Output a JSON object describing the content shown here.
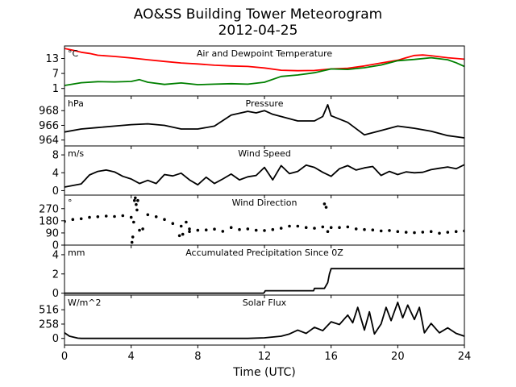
{
  "figure": {
    "title": "AO&SS Building Tower Meteorogram",
    "subtitle": "2012-04-25",
    "xlabel": "Time (UTC)"
  },
  "chart_data": [
    {
      "type": "line",
      "title": "Air and Dewpoint Temperature",
      "unit": "°C",
      "xlim": [
        0,
        24
      ],
      "ylim": [
        -2,
        18
      ],
      "yticks": [
        1,
        7,
        13
      ],
      "series": [
        {
          "color": "#ff0000",
          "x": [
            0,
            0.5,
            1,
            1.5,
            2,
            3,
            4,
            5,
            6,
            7,
            8,
            9,
            10,
            11,
            12,
            13,
            14,
            15,
            16,
            17,
            18,
            19,
            20,
            20.5,
            21,
            21.5,
            22,
            23,
            24
          ],
          "y": [
            17,
            16.3,
            15.5,
            15,
            14.3,
            13.8,
            13.2,
            12.5,
            11.8,
            11.2,
            10.8,
            10.3,
            10,
            9.8,
            9.2,
            8.3,
            8.1,
            8.2,
            8.8,
            9.1,
            10,
            11.2,
            12.3,
            13.3,
            14.2,
            14.4,
            14.1,
            13.3,
            12.7
          ]
        },
        {
          "color": "#008000",
          "x": [
            0,
            1,
            2,
            3,
            4,
            4.5,
            5,
            6,
            7,
            8,
            9,
            10,
            11,
            12,
            13,
            14,
            15,
            16,
            17,
            18,
            19,
            20,
            21,
            22,
            23,
            23.5,
            24
          ],
          "y": [
            2.2,
            3.3,
            3.7,
            3.6,
            3.8,
            4.5,
            3.5,
            2.6,
            3.2,
            2.5,
            2.7,
            2.9,
            2.7,
            3.5,
            5.8,
            6.4,
            7.3,
            8.8,
            8.6,
            9.3,
            10.4,
            12.1,
            12.6,
            13.3,
            12.5,
            11.3,
            9.8
          ]
        }
      ]
    },
    {
      "type": "line",
      "title": "Pressure",
      "unit": "hPa",
      "xlim": [
        0,
        24
      ],
      "ylim": [
        963.2,
        970
      ],
      "yticks": [
        964,
        966,
        968
      ],
      "series": [
        {
          "color": "#000000",
          "x": [
            0,
            1,
            2,
            3,
            4,
            5,
            6,
            7,
            8,
            9,
            10,
            11,
            11.5,
            12,
            12.5,
            13,
            14,
            15,
            15.5,
            15.8,
            16,
            17,
            18,
            19,
            20,
            21,
            22,
            23,
            24
          ],
          "y": [
            965.1,
            965.5,
            965.7,
            965.9,
            966.1,
            966.2,
            966.0,
            965.5,
            965.5,
            965.9,
            967.4,
            967.9,
            967.7,
            968.0,
            967.5,
            967.2,
            966.6,
            966.6,
            967.2,
            968.8,
            967.3,
            966.4,
            964.7,
            965.3,
            965.9,
            965.6,
            965.2,
            964.6,
            964.3
          ]
        }
      ]
    },
    {
      "type": "line",
      "title": "Wind Speed",
      "unit": "m/s",
      "xlim": [
        0,
        24
      ],
      "ylim": [
        -1,
        10
      ],
      "yticks": [
        0,
        4,
        8
      ],
      "series": [
        {
          "color": "#000000",
          "x": [
            0,
            1,
            1.5,
            2,
            2.5,
            3,
            3.5,
            4,
            4.5,
            5,
            5.5,
            6,
            6.5,
            7,
            7.5,
            8,
            8.5,
            9,
            9.5,
            10,
            10.5,
            11,
            11.5,
            12,
            12.5,
            13,
            13.5,
            14,
            14.5,
            15,
            15.5,
            16,
            16.5,
            17,
            17.5,
            18,
            18.5,
            19,
            19.5,
            20,
            20.5,
            21,
            21.5,
            22,
            22.5,
            23,
            23.5,
            24
          ],
          "y": [
            0.8,
            1.5,
            3.5,
            4.3,
            4.6,
            4.2,
            3.2,
            2.6,
            1.6,
            2.3,
            1.6,
            3.6,
            3.3,
            3.9,
            2.4,
            1.3,
            3.0,
            1.6,
            2.6,
            3.7,
            2.4,
            3.1,
            3.4,
            5.2,
            2.4,
            5.6,
            3.8,
            4.3,
            5.7,
            5.2,
            4.1,
            3.2,
            4.9,
            5.6,
            4.6,
            5.1,
            5.4,
            3.4,
            4.3,
            3.6,
            4.2,
            4.0,
            4.1,
            4.7,
            5.0,
            5.3,
            4.9,
            5.8
          ]
        }
      ]
    },
    {
      "type": "scatter",
      "title": "Wind Direction",
      "unit": "°",
      "xlim": [
        0,
        24
      ],
      "ylim": [
        0,
        370
      ],
      "yticks": [
        0,
        90,
        180,
        270
      ],
      "series": [
        {
          "color": "#000000",
          "x": [
            0,
            0.5,
            1,
            1.5,
            2,
            2.5,
            3,
            3.5,
            4,
            4.1,
            4.15,
            4.2,
            4.3,
            4.5,
            4.7,
            5,
            5.5,
            6,
            6.5,
            7,
            7.5,
            8,
            8.5,
            9,
            9.5,
            10,
            10.5,
            11,
            11.5,
            12,
            12.5,
            13,
            13.5,
            14,
            14.5,
            15,
            15.5,
            15.8,
            16,
            16.5,
            17,
            17.5,
            18,
            18.5,
            19,
            19.5,
            20,
            20.5,
            21,
            21.5,
            22,
            22.5,
            23,
            23.5,
            24
          ],
          "y": [
            175,
            190,
            195,
            205,
            210,
            215,
            212,
            218,
            205,
            60,
            170,
            330,
            300,
            110,
            120,
            225,
            210,
            190,
            160,
            140,
            120,
            110,
            112,
            118,
            102,
            130,
            115,
            120,
            110,
            108,
            115,
            125,
            140,
            140,
            130,
            125,
            135,
            100,
            130,
            130,
            135,
            120,
            115,
            112,
            105,
            108,
            100,
            95,
            92,
            96,
            100,
            88,
            95,
            100,
            105
          ]
        },
        {
          "color": "#000000",
          "x": [
            4.05,
            4.25,
            4.35,
            4.4,
            6.9,
            7.1,
            7.3,
            7.5,
            15.6,
            15.7
          ],
          "y": [
            20,
            350,
            260,
            330,
            70,
            80,
            170,
            100,
            305,
            280
          ]
        }
      ]
    },
    {
      "type": "line",
      "title": "Accumulated Precipitation Since 0Z",
      "unit": "mm",
      "xlim": [
        0,
        24
      ],
      "ylim": [
        -0.2,
        5
      ],
      "yticks": [
        0,
        2,
        4
      ],
      "series": [
        {
          "color": "#000000",
          "x": [
            0,
            11.95,
            12,
            12.05,
            14.95,
            15,
            15.6,
            15.8,
            15.9,
            16,
            24
          ],
          "y": [
            0,
            0,
            0.1,
            0.25,
            0.25,
            0.5,
            0.5,
            1.1,
            2.0,
            2.55,
            2.55
          ]
        }
      ]
    },
    {
      "type": "line",
      "title": "Solar Flux",
      "unit": "W/m^2",
      "xlim": [
        0,
        24
      ],
      "ylim": [
        -120,
        780
      ],
      "yticks": [
        0,
        258,
        516
      ],
      "series": [
        {
          "color": "#000000",
          "x": [
            0,
            0.3,
            0.8,
            1,
            11,
            12,
            13,
            13.5,
            14,
            14.5,
            15,
            15.5,
            16,
            16.5,
            17,
            17.3,
            17.6,
            18,
            18.3,
            18.6,
            19,
            19.3,
            19.6,
            20,
            20.3,
            20.6,
            21,
            21.3,
            21.6,
            22,
            22.5,
            23,
            23.5,
            24
          ],
          "y": [
            100,
            40,
            5,
            0,
            0,
            10,
            40,
            80,
            150,
            90,
            200,
            140,
            300,
            250,
            420,
            280,
            560,
            150,
            480,
            80,
            260,
            560,
            320,
            650,
            370,
            600,
            340,
            560,
            100,
            270,
            100,
            190,
            90,
            40
          ]
        }
      ]
    }
  ]
}
